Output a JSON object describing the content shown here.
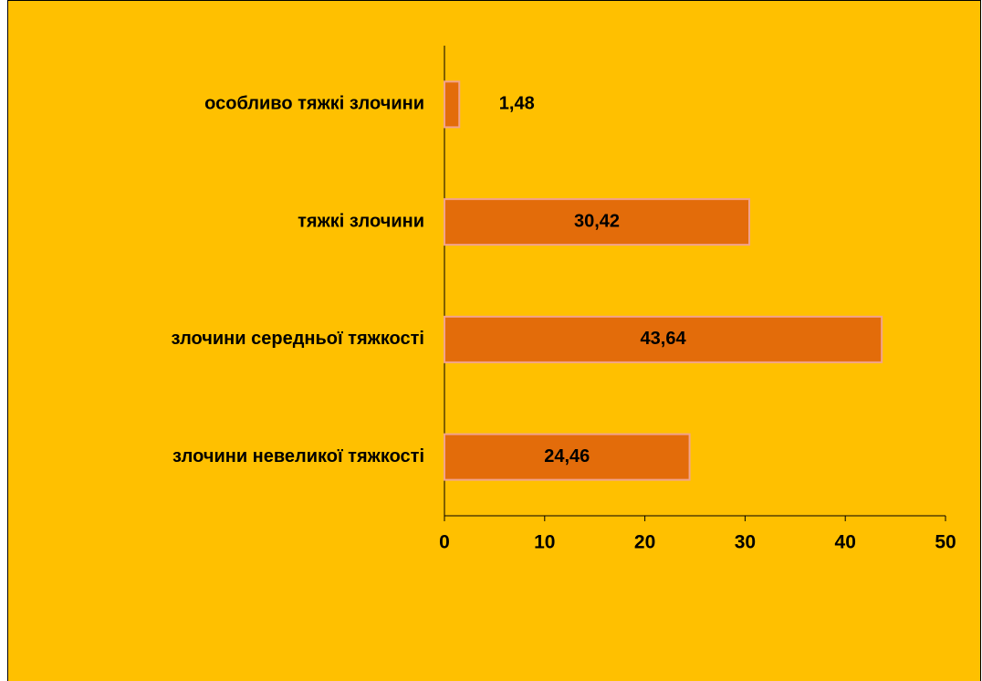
{
  "chart_data": {
    "type": "bar",
    "orientation": "horizontal",
    "categories": [
      "особливо  тяжкі злочини",
      "тяжкі злочини",
      "злочини середньої тяжкості",
      "злочини невеликої тяжкості"
    ],
    "values": [
      1.48,
      30.42,
      43.64,
      24.46
    ],
    "value_labels": [
      "1,48",
      "30,42",
      "43,64",
      "24,46"
    ],
    "color": "#E36C0A",
    "xlim": [
      0,
      50
    ],
    "xticks": [
      0,
      10,
      20,
      30,
      40,
      50
    ],
    "grid": false
  }
}
